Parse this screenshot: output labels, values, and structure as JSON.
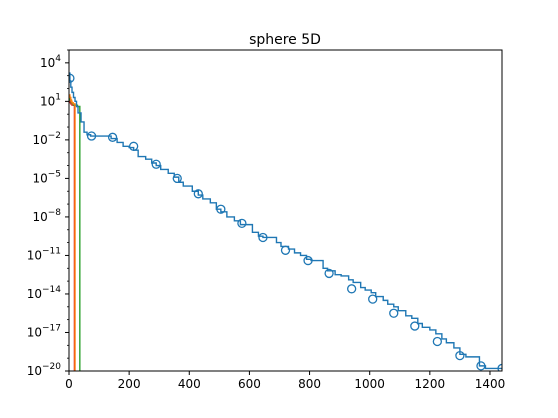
{
  "chart_data": {
    "type": "line",
    "title": "sphere 5D",
    "xlabel": "",
    "ylabel": "",
    "x_scale": "linear",
    "y_scale": "log",
    "xlim": [
      0,
      1440
    ],
    "ylim_exponent": [
      -20,
      5
    ],
    "x_ticks": [
      0,
      200,
      400,
      600,
      800,
      1000,
      1200,
      1400
    ],
    "y_ticks_exponent": [
      4,
      1,
      -2,
      -5,
      -8,
      -11,
      -14,
      -17,
      -20
    ],
    "grid": false,
    "legend": "none",
    "series": [
      {
        "color": "#1f77b4",
        "marker": "open-circle",
        "step_x": [
          0,
          3,
          6,
          10,
          15,
          20,
          25,
          30,
          40,
          50,
          60,
          72,
          90,
          110,
          140,
          160,
          180,
          200,
          215,
          230,
          255,
          275,
          290,
          305,
          330,
          350,
          365,
          380,
          410,
          430,
          445,
          470,
          490,
          505,
          525,
          550,
          570,
          585,
          610,
          630,
          645,
          670,
          690,
          705,
          730,
          750,
          770,
          790,
          805,
          830,
          845,
          860,
          885,
          905,
          930,
          945,
          970,
          985,
          1005,
          1020,
          1045,
          1060,
          1080,
          1095,
          1120,
          1140,
          1160,
          1175,
          1200,
          1220,
          1240,
          1255,
          1280,
          1300,
          1320,
          1345,
          1365,
          1385,
          1410,
          1440
        ],
        "step_log_y": [
          3.2,
          2.6,
          2.1,
          1.7,
          1.3,
          1.0,
          0.6,
          0.1,
          -0.6,
          -1.4,
          -1.6,
          -1.7,
          -1.7,
          -1.7,
          -1.9,
          -2.2,
          -2.5,
          -2.6,
          -2.8,
          -3.3,
          -3.5,
          -3.8,
          -4.0,
          -4.3,
          -4.6,
          -4.9,
          -5.3,
          -5.6,
          -6.0,
          -6.3,
          -6.6,
          -6.9,
          -7.4,
          -7.6,
          -8.0,
          -8.3,
          -8.6,
          -8.6,
          -9.2,
          -9.5,
          -9.6,
          -9.6,
          -10.0,
          -10.3,
          -10.5,
          -10.8,
          -11.0,
          -11.3,
          -11.4,
          -11.4,
          -12.0,
          -12.2,
          -12.5,
          -12.6,
          -12.9,
          -13.1,
          -13.5,
          -13.7,
          -13.9,
          -14.2,
          -14.5,
          -14.8,
          -15.0,
          -15.3,
          -15.7,
          -15.9,
          -16.3,
          -16.6,
          -16.8,
          -17.1,
          -17.5,
          -17.8,
          -18.2,
          -18.7,
          -18.9,
          -18.9,
          -19.6,
          -19.8,
          -19.8,
          -19.8
        ]
      },
      {
        "color": "#ff7f0e",
        "step_x": [
          0,
          3,
          6,
          8,
          10,
          12,
          14,
          16,
          18,
          20
        ],
        "step_log_y": [
          1.5,
          1.3,
          1.1,
          1.0,
          0.9,
          0.9,
          0.8,
          0.8,
          0.8,
          -20
        ]
      },
      {
        "color": "#2ca02c",
        "step_x": [
          0,
          4,
          8,
          12,
          16,
          20,
          24,
          28,
          32,
          36
        ],
        "step_log_y": [
          1.3,
          1.1,
          0.9,
          0.8,
          0.7,
          0.7,
          0.7,
          0.6,
          0.6,
          -20
        ]
      },
      {
        "color": "#d62728",
        "step_x": [
          0,
          2,
          4,
          6,
          8,
          10,
          12,
          14,
          16,
          18
        ],
        "step_log_y": [
          1.2,
          1.0,
          0.9,
          0.8,
          0.8,
          0.7,
          0.7,
          0.7,
          0.7,
          -20
        ]
      }
    ],
    "markers": {
      "series": 0,
      "x": [
        3,
        75,
        145,
        215,
        290,
        360,
        430,
        505,
        575,
        645,
        720,
        795,
        865,
        940,
        1010,
        1080,
        1150,
        1225,
        1300,
        1370,
        1440
      ],
      "log_y": [
        2.8,
        -1.7,
        -1.8,
        -2.5,
        -3.9,
        -5.0,
        -6.2,
        -7.4,
        -8.5,
        -9.6,
        -10.6,
        -11.4,
        -12.4,
        -13.6,
        -14.4,
        -15.5,
        -16.5,
        -17.7,
        -18.8,
        -19.6,
        -19.8
      ]
    }
  }
}
